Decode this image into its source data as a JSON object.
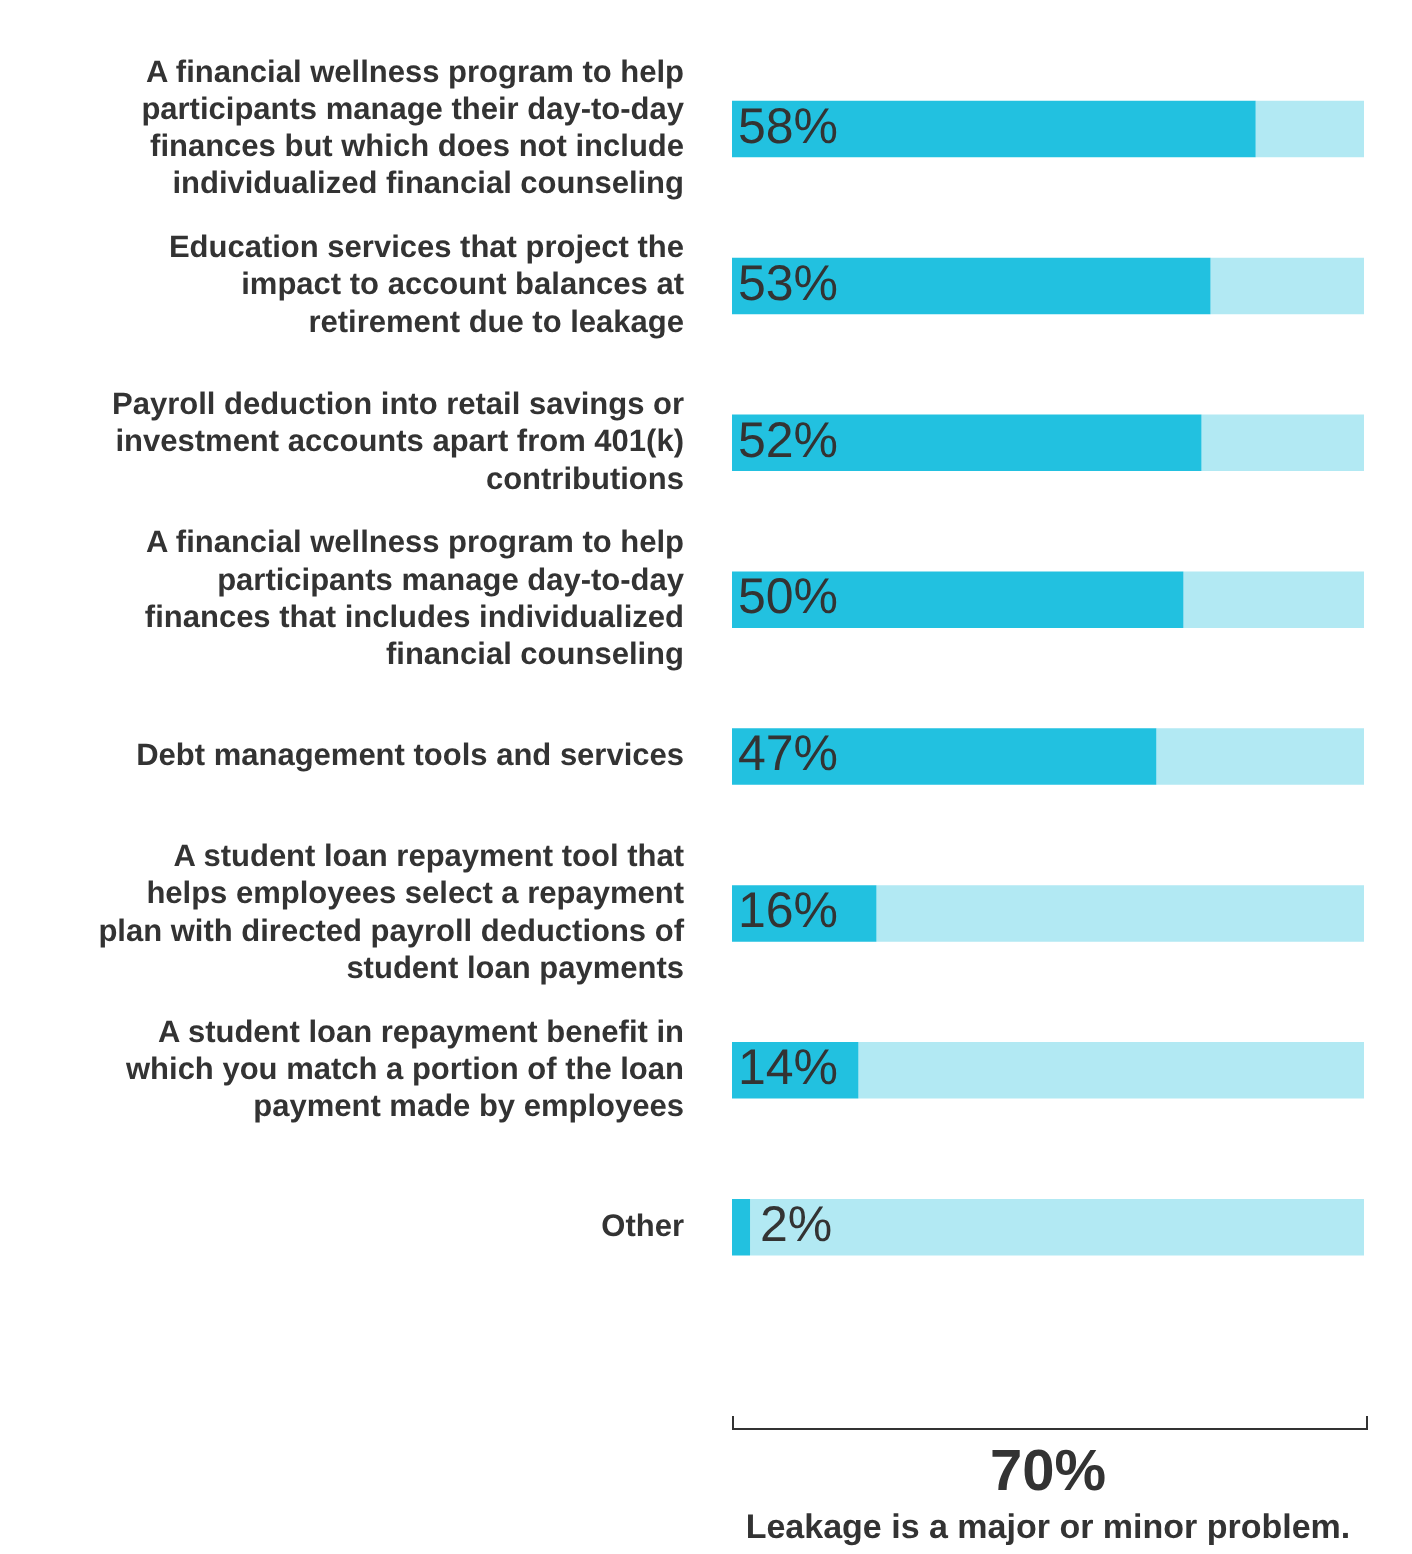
{
  "chart_data": {
    "type": "bar",
    "orientation": "horizontal",
    "stacked": true,
    "categories": [
      "A financial wellness program to help participants manage their day-to-day finances but which does not include individualized financial counseling",
      "Education services that project the impact to account balances at retirement due to leakage",
      "Payroll deduction into retail savings or investment accounts apart from 401(k) contributions",
      "A financial wellness program to help participants manage day-to-day finances that includes individualized financial counseling",
      "Debt management tools and services",
      "A student loan repayment tool that helps employees select a repayment plan with directed payroll deductions of student loan payments",
      "A student loan repayment benefit in which you match a portion of the loan payment made by employees",
      "Other"
    ],
    "series": [
      {
        "color": "#22c1e0",
        "values": [
          58,
          53,
          52,
          50,
          47,
          16,
          14,
          2
        ],
        "value_labels": [
          "58%",
          "53%",
          "52%",
          "50%",
          "47%",
          "16%",
          "14%",
          "2%"
        ]
      },
      {
        "color": "#b2e9f3",
        "values": [
          12,
          17,
          18,
          20,
          23,
          54,
          56,
          68
        ]
      }
    ],
    "xlim": [
      0,
      70
    ],
    "tick_labels": "y",
    "legend": false,
    "annotations": [
      "70%",
      "Leakage is a major or minor problem."
    ]
  }
}
